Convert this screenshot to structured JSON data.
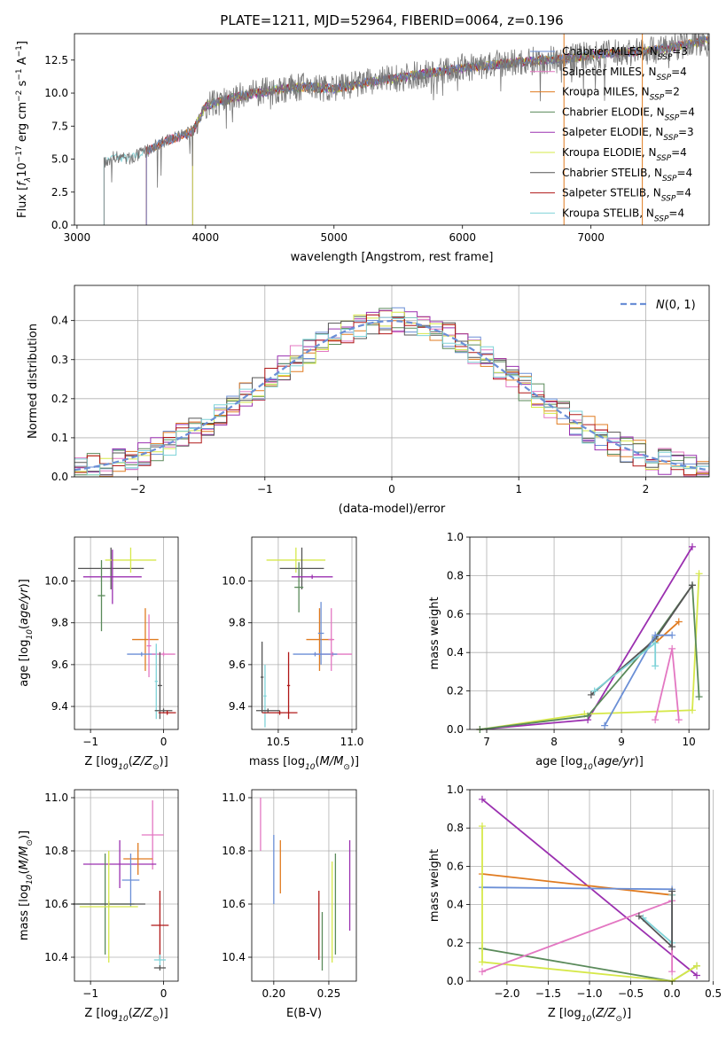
{
  "figure": {
    "title": "PLATE=1211, MJD=52964, FIBERID=0064, z=0.196"
  },
  "chart_data": [
    {
      "id": "spectrum",
      "type": "line",
      "title": "PLATE=1211, MJD=52964, FIBERID=0064, z=0.196",
      "xlabel": "wavelength [Angstrom, rest frame]",
      "ylabel": "Flux [f_λ10^-17 erg cm^-2 s^-1 A^-1]",
      "xlim": [
        2980,
        7920
      ],
      "ylim": [
        0,
        14.5
      ],
      "xticks": [
        3000,
        4000,
        5000,
        6000,
        7000
      ],
      "yticks": [
        0.0,
        2.5,
        5.0,
        7.5,
        10.0,
        12.5
      ],
      "grid": false,
      "legend": "upper right",
      "data_series": {
        "x": [
          3210,
          3300,
          3400,
          3500,
          3700,
          3900,
          4000,
          4200,
          4400,
          4600,
          4800,
          5000,
          5200,
          5400,
          5600,
          5800,
          6000,
          6200,
          6400,
          6600,
          6800,
          7000,
          7200,
          7400,
          7600,
          7900
        ],
        "y": [
          4.8,
          5.2,
          5.0,
          5.4,
          6.4,
          7.1,
          9.0,
          9.6,
          10.0,
          10.3,
          10.5,
          10.3,
          10.7,
          11.0,
          11.3,
          11.6,
          11.9,
          12.1,
          12.3,
          12.5,
          12.6,
          12.9,
          13.0,
          13.2,
          13.4,
          14.0
        ]
      },
      "model_starts": [
        {
          "name": "Chabrier MILES, N_SSP=3",
          "color": "#6b8fd6",
          "start": 3540
        },
        {
          "name": "Salpeter MILES, N_SSP=4",
          "color": "#e377c2",
          "start": 3540
        },
        {
          "name": "Kroupa MILES, N_SSP=2",
          "color": "#e07b20",
          "start": 3540
        },
        {
          "name": "Chabrier ELODIE, N_SSP=4",
          "color": "#5a8a5a",
          "start": 3900
        },
        {
          "name": "Salpeter ELODIE, N_SSP=3",
          "color": "#9b30b0",
          "start": 3900
        },
        {
          "name": "Kroupa ELODIE, N_SSP=4",
          "color": "#d6e84a",
          "start": 3900
        },
        {
          "name": "Chabrier STELIB, N_SSP=4",
          "color": "#555555",
          "start": 3210
        },
        {
          "name": "Salpeter STELIB, N_SSP=4",
          "color": "#b01818",
          "start": 3540
        },
        {
          "name": "Kroupa STELIB, N_SSP=4",
          "color": "#7fd3d8",
          "start": 3210
        }
      ],
      "series": [
        {
          "label": "Chabrier MILES, N",
          "sub": "SSP",
          "tail": "=3",
          "color": "#6b8fd6"
        },
        {
          "label": "Salpeter MILES, N",
          "sub": "SSP",
          "tail": "=4",
          "color": "#e377c2"
        },
        {
          "label": "Kroupa MILES, N",
          "sub": "SSP",
          "tail": "=2",
          "color": "#e07b20"
        },
        {
          "label": "Chabrier ELODIE, N",
          "sub": "SSP",
          "tail": "=4",
          "color": "#5a8a5a"
        },
        {
          "label": "Salpeter ELODIE, N",
          "sub": "SSP",
          "tail": "=3",
          "color": "#9b30b0"
        },
        {
          "label": "Kroupa ELODIE, N",
          "sub": "SSP",
          "tail": "=4",
          "color": "#d6e84a"
        },
        {
          "label": "Chabrier STELIB, N",
          "sub": "SSP",
          "tail": "=4",
          "color": "#555555"
        },
        {
          "label": "Salpeter STELIB, N",
          "sub": "SSP",
          "tail": "=4",
          "color": "#b01818"
        },
        {
          "label": "Kroupa STELIB, N",
          "sub": "SSP",
          "tail": "=4",
          "color": "#7fd3d8"
        }
      ]
    },
    {
      "id": "residuals",
      "type": "line",
      "xlabel": "(data-model)/error",
      "ylabel": "Normed distribution",
      "xlim": [
        -2.5,
        2.5
      ],
      "ylim": [
        0,
        0.49
      ],
      "xticks": [
        -2,
        -1,
        0,
        1,
        2
      ],
      "yticks": [
        0.0,
        0.1,
        0.2,
        0.3,
        0.4
      ],
      "grid": true,
      "legend": "upper right",
      "reference": {
        "label": "N(0, 1)",
        "color": "#6b8fd6"
      },
      "bin_width": 0.1,
      "series_colors": [
        "#6b8fd6",
        "#e377c2",
        "#e07b20",
        "#5a8a5a",
        "#9b30b0",
        "#d6e84a",
        "#555555",
        "#b01818",
        "#7fd3d8"
      ]
    },
    {
      "id": "age-vs-z",
      "type": "scatter",
      "xlabel": "Z [log10(Z/Z_sun)]",
      "ylabel": "age [log10(age/yr)]",
      "xlim": [
        -1.22,
        0.2
      ],
      "ylim": [
        9.29,
        10.21
      ],
      "xticks": [
        -1,
        0
      ],
      "yticks": [
        9.4,
        9.6,
        9.8,
        10.0
      ],
      "grid": true,
      "points": [
        {
          "x": -0.72,
          "xerr": 0.45,
          "y": 10.06,
          "yerr": 0.1,
          "color": "#555555"
        },
        {
          "x": -0.45,
          "xerr": 0.35,
          "y": 10.1,
          "yerr": 0.06,
          "color": "#d6e84a"
        },
        {
          "x": -0.7,
          "xerr": 0.4,
          "y": 10.02,
          "yerr": 0.13,
          "color": "#9b30b0"
        },
        {
          "x": -0.85,
          "xerr": 0.05,
          "y": 9.93,
          "yerr": 0.17,
          "color": "#5a8a5a"
        },
        {
          "x": -0.25,
          "xerr": 0.18,
          "y": 9.72,
          "yerr": 0.15,
          "color": "#e07b20"
        },
        {
          "x": -0.2,
          "xerr": 0.03,
          "y": 9.69,
          "yerr": 0.15,
          "color": "#e377c2"
        },
        {
          "x": -0.3,
          "xerr": 0.2,
          "y": 9.65,
          "yerr": 0.01,
          "color": "#6b8fd6"
        },
        {
          "x": 0.0,
          "xerr": 0.16,
          "y": 9.65,
          "yerr": 0.01,
          "color": "#e377c2"
        },
        {
          "x": -0.1,
          "xerr": 0.02,
          "y": 9.52,
          "yerr": 0.18,
          "color": "#7fd3d8"
        },
        {
          "x": -0.05,
          "xerr": 0.03,
          "y": 9.5,
          "yerr": 0.16,
          "color": "#555555"
        },
        {
          "x": 0.0,
          "xerr": 0.12,
          "y": 9.38,
          "yerr": 0.01,
          "color": "#555555"
        },
        {
          "x": 0.05,
          "xerr": 0.12,
          "y": 9.37,
          "yerr": 0.01,
          "color": "#b01818"
        }
      ]
    },
    {
      "id": "age-vs-mass",
      "type": "scatter",
      "xlabel": "mass [log10(M/M_sun)]",
      "ylabel": "",
      "xlim": [
        10.32,
        11.03
      ],
      "ylim": [
        9.29,
        10.21
      ],
      "xticks": [
        10.5,
        11.0
      ],
      "yticks": [
        9.4,
        9.6,
        9.8,
        10.0
      ],
      "grid": true,
      "points": [
        {
          "x": 10.62,
          "xerr": 0.2,
          "y": 10.1,
          "yerr": 0.06,
          "color": "#d6e84a"
        },
        {
          "x": 10.66,
          "xerr": 0.15,
          "y": 10.06,
          "yerr": 0.1,
          "color": "#555555"
        },
        {
          "x": 10.64,
          "xerr": 0.03,
          "y": 9.97,
          "yerr": 0.12,
          "color": "#5a8a5a"
        },
        {
          "x": 10.73,
          "xerr": 0.14,
          "y": 10.02,
          "yerr": 0.01,
          "color": "#9b30b0"
        },
        {
          "x": 10.78,
          "xerr": 0.09,
          "y": 9.72,
          "yerr": 0.15,
          "color": "#e07b20"
        },
        {
          "x": 10.87,
          "xerr": 0.13,
          "y": 9.65,
          "yerr": 0.01,
          "color": "#e377c2"
        },
        {
          "x": 10.75,
          "xerr": 0.15,
          "y": 9.65,
          "yerr": 0.01,
          "color": "#6b8fd6"
        },
        {
          "x": 10.79,
          "xerr": 0.02,
          "y": 9.75,
          "yerr": 0.15,
          "color": "#6b8fd6"
        },
        {
          "x": 10.86,
          "xerr": 0.02,
          "y": 9.72,
          "yerr": 0.15,
          "color": "#e377c2"
        },
        {
          "x": 10.39,
          "xerr": 0.01,
          "y": 9.54,
          "yerr": 0.17,
          "color": "#555555"
        },
        {
          "x": 10.41,
          "xerr": 0.01,
          "y": 9.45,
          "yerr": 0.15,
          "color": "#7fd3d8"
        },
        {
          "x": 10.51,
          "xerr": 0.12,
          "y": 9.37,
          "yerr": 0.01,
          "color": "#b01818"
        },
        {
          "x": 10.43,
          "xerr": 0.08,
          "y": 9.38,
          "yerr": 0.01,
          "color": "#555555"
        },
        {
          "x": 10.57,
          "xerr": 0.01,
          "y": 9.5,
          "yerr": 0.16,
          "color": "#b01818"
        }
      ]
    },
    {
      "id": "weight-vs-age",
      "type": "line",
      "xlabel": "age [log10(age/yr)]",
      "ylabel": "mass weight",
      "xlim": [
        6.75,
        10.3
      ],
      "ylim": [
        0,
        1.0
      ],
      "xticks": [
        7,
        8,
        9,
        10
      ],
      "yticks": [
        0.0,
        0.2,
        0.4,
        0.6,
        0.8,
        1.0
      ],
      "grid": true,
      "series": [
        {
          "color": "#9b30b0",
          "x": [
            6.9,
            8.5,
            10.05
          ],
          "y": [
            0.0,
            0.05,
            0.95
          ]
        },
        {
          "color": "#d6e84a",
          "x": [
            6.9,
            8.45,
            10.05,
            10.15
          ],
          "y": [
            0.0,
            0.08,
            0.1,
            0.81
          ]
        },
        {
          "color": "#5a8a5a",
          "x": [
            6.9,
            8.5,
            9.5,
            10.05,
            10.15
          ],
          "y": [
            0.0,
            0.07,
            0.48,
            0.75,
            0.17
          ]
        },
        {
          "color": "#555555",
          "x": [
            8.55,
            9.5,
            10.05
          ],
          "y": [
            0.18,
            0.47,
            0.75
          ]
        },
        {
          "color": "#e07b20",
          "x": [
            9.5,
            9.85
          ],
          "y": [
            0.45,
            0.56
          ]
        },
        {
          "color": "#6b8fd6",
          "x": [
            8.75,
            9.5,
            9.75
          ],
          "y": [
            0.02,
            0.49,
            0.49
          ]
        },
        {
          "color": "#e377c2",
          "x": [
            9.5,
            9.75,
            9.85
          ],
          "y": [
            0.05,
            0.42,
            0.05
          ]
        },
        {
          "color": "#7fd3d8",
          "x": [
            8.6,
            9.5,
            9.5
          ],
          "y": [
            0.2,
            0.45,
            0.33
          ]
        }
      ]
    },
    {
      "id": "mass-vs-z",
      "type": "scatter",
      "xlabel": "Z [log10(Z/Z_sun)]",
      "ylabel": "mass [log10(M/M_sun)]",
      "xlim": [
        -1.22,
        0.2
      ],
      "ylim": [
        10.31,
        11.03
      ],
      "xticks": [
        -1,
        0
      ],
      "yticks": [
        10.4,
        10.6,
        10.8,
        11.0
      ],
      "grid": true,
      "points": [
        {
          "x": -0.15,
          "xerr": 0.15,
          "y": 10.86,
          "yerr": 0.13,
          "color": "#e377c2"
        },
        {
          "x": -0.6,
          "xerr": 0.5,
          "y": 10.75,
          "yerr": 0.09,
          "color": "#9b30b0"
        },
        {
          "x": -0.35,
          "xerr": 0.2,
          "y": 10.77,
          "yerr": 0.06,
          "color": "#e07b20"
        },
        {
          "x": -0.45,
          "xerr": 0.12,
          "y": 10.69,
          "yerr": 0.1,
          "color": "#6b8fd6"
        },
        {
          "x": -0.8,
          "xerr": 0.4,
          "y": 10.6,
          "yerr": 0.19,
          "color": "#5a8a5a"
        },
        {
          "x": -0.75,
          "xerr": 0.5,
          "y": 10.6,
          "yerr": 0.01,
          "color": "#555555"
        },
        {
          "x": -0.75,
          "xerr": 0.4,
          "y": 10.59,
          "yerr": 0.21,
          "color": "#d6e84a"
        },
        {
          "x": -0.05,
          "xerr": 0.12,
          "y": 10.52,
          "yerr": 0.13,
          "color": "#b01818"
        },
        {
          "x": -0.05,
          "xerr": 0.08,
          "y": 10.39,
          "yerr": 0.02,
          "color": "#7fd3d8"
        },
        {
          "x": -0.05,
          "xerr": 0.08,
          "y": 10.36,
          "yerr": 0.01,
          "color": "#555555"
        }
      ]
    },
    {
      "id": "mass-vs-ebv",
      "type": "scatter",
      "xlabel": "E(B-V)",
      "ylabel": "",
      "xlim": [
        0.18,
        0.275
      ],
      "ylim": [
        10.31,
        11.03
      ],
      "xticks": [
        0.2,
        0.25
      ],
      "yticks": [
        10.4,
        10.6,
        10.8,
        11.0
      ],
      "grid": true,
      "points": [
        {
          "x": 0.188,
          "y": 10.9,
          "yerr": 0.1,
          "color": "#e377c2"
        },
        {
          "x": 0.2,
          "y": 10.73,
          "yerr": 0.13,
          "color": "#6b8fd6"
        },
        {
          "x": 0.206,
          "y": 10.74,
          "yerr": 0.1,
          "color": "#e07b20"
        },
        {
          "x": 0.241,
          "y": 10.52,
          "yerr": 0.13,
          "color": "#b01818"
        },
        {
          "x": 0.244,
          "y": 10.46,
          "yerr": 0.11,
          "color": "#5a8a5a"
        },
        {
          "x": 0.253,
          "y": 10.57,
          "yerr": 0.19,
          "color": "#d6e84a"
        },
        {
          "x": 0.256,
          "y": 10.6,
          "yerr": 0.19,
          "color": "#5a8a5a"
        },
        {
          "x": 0.269,
          "y": 10.67,
          "yerr": 0.17,
          "color": "#9b30b0"
        }
      ]
    },
    {
      "id": "weight-vs-z",
      "type": "line",
      "xlabel": "Z [log10(Z/Z_sun)]",
      "ylabel": "mass weight",
      "xlim": [
        -2.45,
        0.45
      ],
      "ylim": [
        0,
        1.0
      ],
      "xticks": [
        -2.0,
        -1.5,
        -1.0,
        -0.5,
        0.0,
        0.5
      ],
      "xticklabels": [
        "−2.0",
        "−1.5",
        "−1.0",
        "−0.5",
        "0.0",
        "0.5"
      ],
      "yticks": [
        0.0,
        0.2,
        0.4,
        0.6,
        0.8,
        1.0
      ],
      "grid": true,
      "series": [
        {
          "color": "#9b30b0",
          "x": [
            -2.3,
            0.3
          ],
          "y": [
            0.95,
            0.03
          ]
        },
        {
          "color": "#e07b20",
          "x": [
            -2.3,
            0.0
          ],
          "y": [
            0.56,
            0.45
          ]
        },
        {
          "color": "#6b8fd6",
          "x": [
            -2.3,
            0.0
          ],
          "y": [
            0.49,
            0.48
          ]
        },
        {
          "color": "#5a8a5a",
          "x": [
            -2.3,
            0.0,
            0.3
          ],
          "y": [
            0.17,
            0.0,
            0.08
          ]
        },
        {
          "color": "#d6e84a",
          "x": [
            -2.3,
            -2.3,
            0.0,
            0.3
          ],
          "y": [
            0.81,
            0.1,
            0.0,
            0.08
          ]
        },
        {
          "color": "#e377c2",
          "x": [
            -2.3,
            0.0,
            0.0
          ],
          "y": [
            0.05,
            0.42,
            0.05
          ]
        },
        {
          "color": "#7fd3d8",
          "x": [
            -0.35,
            0.0,
            0.0
          ],
          "y": [
            0.33,
            0.2,
            0.45
          ]
        },
        {
          "color": "#555555",
          "x": [
            -0.4,
            0.0,
            0.0
          ],
          "y": [
            0.34,
            0.18,
            0.47
          ]
        }
      ]
    }
  ]
}
